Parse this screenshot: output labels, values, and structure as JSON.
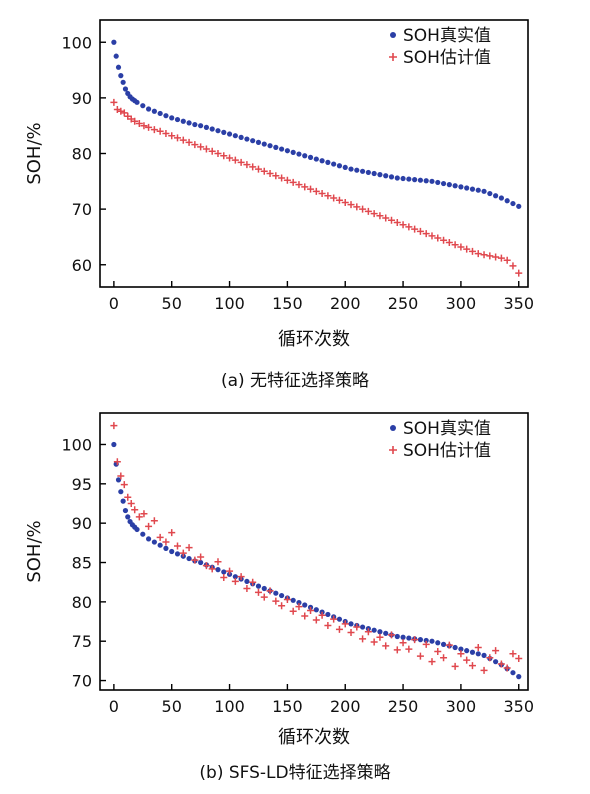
{
  "chart_data": [
    {
      "type": "scatter",
      "caption": "(a) 无特征选择策略",
      "xlabel": "循环次数",
      "ylabel": "SOH/%",
      "xlim": [
        -12,
        358
      ],
      "ylim": [
        56,
        104
      ],
      "xticks": [
        0,
        50,
        100,
        150,
        200,
        250,
        300,
        350
      ],
      "yticks": [
        60,
        70,
        80,
        90,
        100
      ],
      "legend_position": "top-right",
      "series": [
        {
          "name": "SOH真实值",
          "marker": "dot",
          "color": "#2b3fa6",
          "x": [
            0,
            2,
            4,
            6,
            8,
            10,
            12,
            14,
            16,
            18,
            20,
            25,
            30,
            35,
            40,
            45,
            50,
            55,
            60,
            65,
            70,
            75,
            80,
            85,
            90,
            95,
            100,
            105,
            110,
            115,
            120,
            125,
            130,
            135,
            140,
            145,
            150,
            155,
            160,
            165,
            170,
            175,
            180,
            185,
            190,
            195,
            200,
            205,
            210,
            215,
            220,
            225,
            230,
            235,
            240,
            245,
            250,
            255,
            260,
            265,
            270,
            275,
            280,
            285,
            290,
            295,
            300,
            305,
            310,
            315,
            320,
            325,
            330,
            335,
            340,
            345,
            350
          ],
          "y": [
            100,
            97.5,
            95.5,
            94,
            92.8,
            91.6,
            90.8,
            90.2,
            89.8,
            89.5,
            89.2,
            88.6,
            88.0,
            87.6,
            87.2,
            86.8,
            86.4,
            86.1,
            85.8,
            85.5,
            85.2,
            85.0,
            84.7,
            84.4,
            84.1,
            83.8,
            83.5,
            83.2,
            82.9,
            82.6,
            82.3,
            82.0,
            81.7,
            81.4,
            81.1,
            80.8,
            80.5,
            80.2,
            79.9,
            79.6,
            79.3,
            79.0,
            78.7,
            78.4,
            78.1,
            77.8,
            77.5,
            77.2,
            77.0,
            76.8,
            76.6,
            76.4,
            76.2,
            76.0,
            75.8,
            75.6,
            75.5,
            75.4,
            75.3,
            75.2,
            75.1,
            75.0,
            74.8,
            74.6,
            74.4,
            74.2,
            74.0,
            73.8,
            73.6,
            73.4,
            73.2,
            72.8,
            72.4,
            72.0,
            71.5,
            71.0,
            70.5
          ]
        },
        {
          "name": "SOH估计值",
          "marker": "plus",
          "color": "#e0484e",
          "x": [
            0,
            3,
            6,
            9,
            12,
            15,
            18,
            22,
            26,
            30,
            35,
            40,
            45,
            50,
            55,
            60,
            65,
            70,
            75,
            80,
            85,
            90,
            95,
            100,
            105,
            110,
            115,
            120,
            125,
            130,
            135,
            140,
            145,
            150,
            155,
            160,
            165,
            170,
            175,
            180,
            185,
            190,
            195,
            200,
            205,
            210,
            215,
            220,
            225,
            230,
            235,
            240,
            245,
            250,
            255,
            260,
            265,
            270,
            275,
            280,
            285,
            290,
            295,
            300,
            305,
            310,
            315,
            320,
            325,
            330,
            335,
            340,
            345,
            350
          ],
          "y": [
            89.2,
            87.9,
            87.6,
            87.3,
            86.7,
            86.2,
            85.8,
            85.4,
            85.0,
            84.7,
            84.3,
            84.0,
            83.6,
            83.2,
            82.8,
            82.4,
            82.0,
            81.6,
            81.2,
            80.8,
            80.4,
            80.0,
            79.6,
            79.2,
            78.8,
            78.4,
            78.0,
            77.6,
            77.2,
            76.8,
            76.4,
            76.0,
            75.6,
            75.2,
            74.8,
            74.4,
            74.0,
            73.6,
            73.2,
            72.8,
            72.4,
            72.0,
            71.6,
            71.2,
            70.8,
            70.4,
            70.0,
            69.6,
            69.2,
            68.8,
            68.4,
            68.0,
            67.6,
            67.2,
            66.8,
            66.4,
            66.0,
            65.6,
            65.2,
            64.8,
            64.4,
            64.0,
            63.6,
            63.2,
            62.8,
            62.4,
            62.0,
            61.8,
            61.6,
            61.4,
            61.2,
            60.8,
            59.8,
            58.5
          ]
        }
      ]
    },
    {
      "type": "scatter",
      "caption": "(b) SFS-LD特征选择策略",
      "xlabel": "循环次数",
      "ylabel": "SOH/%",
      "xlim": [
        -12,
        358
      ],
      "ylim": [
        68.8,
        104
      ],
      "xticks": [
        0,
        50,
        100,
        150,
        200,
        250,
        300,
        350
      ],
      "yticks": [
        70,
        75,
        80,
        85,
        90,
        95,
        100
      ],
      "legend_position": "top-right",
      "series": [
        {
          "name": "SOH真实值",
          "marker": "dot",
          "color": "#2b3fa6",
          "x": [
            0,
            2,
            4,
            6,
            8,
            10,
            12,
            14,
            16,
            18,
            20,
            25,
            30,
            35,
            40,
            45,
            50,
            55,
            60,
            65,
            70,
            75,
            80,
            85,
            90,
            95,
            100,
            105,
            110,
            115,
            120,
            125,
            130,
            135,
            140,
            145,
            150,
            155,
            160,
            165,
            170,
            175,
            180,
            185,
            190,
            195,
            200,
            205,
            210,
            215,
            220,
            225,
            230,
            235,
            240,
            245,
            250,
            255,
            260,
            265,
            270,
            275,
            280,
            285,
            290,
            295,
            300,
            305,
            310,
            315,
            320,
            325,
            330,
            335,
            340,
            345,
            350
          ],
          "y": [
            100,
            97.5,
            95.5,
            94,
            92.8,
            91.6,
            90.8,
            90.2,
            89.8,
            89.5,
            89.2,
            88.6,
            88.0,
            87.6,
            87.2,
            86.8,
            86.4,
            86.1,
            85.8,
            85.5,
            85.2,
            85.0,
            84.7,
            84.4,
            84.1,
            83.8,
            83.5,
            83.2,
            82.9,
            82.6,
            82.3,
            82.0,
            81.7,
            81.4,
            81.1,
            80.8,
            80.5,
            80.2,
            79.9,
            79.6,
            79.3,
            79.0,
            78.7,
            78.4,
            78.1,
            77.8,
            77.5,
            77.2,
            77.0,
            76.8,
            76.6,
            76.4,
            76.2,
            76.0,
            75.8,
            75.6,
            75.5,
            75.4,
            75.3,
            75.2,
            75.1,
            75.0,
            74.8,
            74.6,
            74.4,
            74.2,
            74.0,
            73.8,
            73.6,
            73.4,
            73.2,
            72.8,
            72.4,
            72.0,
            71.5,
            71.0,
            70.5
          ]
        },
        {
          "name": "SOH估计值",
          "marker": "plus",
          "color": "#e0484e",
          "x": [
            0,
            3,
            6,
            9,
            12,
            15,
            18,
            22,
            26,
            30,
            35,
            40,
            45,
            50,
            55,
            60,
            65,
            70,
            75,
            80,
            85,
            90,
            95,
            100,
            105,
            110,
            115,
            120,
            125,
            130,
            135,
            140,
            145,
            150,
            155,
            160,
            165,
            170,
            175,
            180,
            185,
            190,
            195,
            200,
            205,
            210,
            215,
            220,
            225,
            230,
            235,
            240,
            245,
            250,
            255,
            260,
            265,
            270,
            275,
            280,
            285,
            290,
            295,
            300,
            305,
            310,
            315,
            320,
            325,
            330,
            335,
            340,
            345,
            350
          ],
          "y": [
            102.4,
            97.8,
            96.0,
            94.9,
            93.3,
            92.5,
            91.7,
            90.8,
            91.2,
            89.6,
            90.3,
            88.2,
            87.6,
            88.8,
            87.1,
            86.2,
            86.9,
            85.3,
            85.7,
            84.6,
            84.2,
            85.1,
            83.1,
            83.9,
            82.6,
            83.2,
            81.7,
            82.5,
            81.2,
            80.6,
            81.4,
            80.1,
            79.5,
            80.3,
            78.8,
            79.4,
            78.2,
            78.9,
            77.7,
            78.3,
            77.0,
            77.8,
            76.5,
            77.2,
            76.1,
            76.8,
            75.3,
            76.2,
            74.9,
            75.5,
            74.4,
            75.8,
            73.9,
            74.8,
            74.0,
            75.2,
            73.1,
            74.6,
            72.4,
            73.7,
            72.9,
            74.5,
            71.8,
            73.4,
            72.6,
            71.9,
            74.2,
            71.3,
            72.9,
            73.8,
            72.1,
            71.6,
            73.4,
            72.8
          ]
        }
      ]
    }
  ]
}
